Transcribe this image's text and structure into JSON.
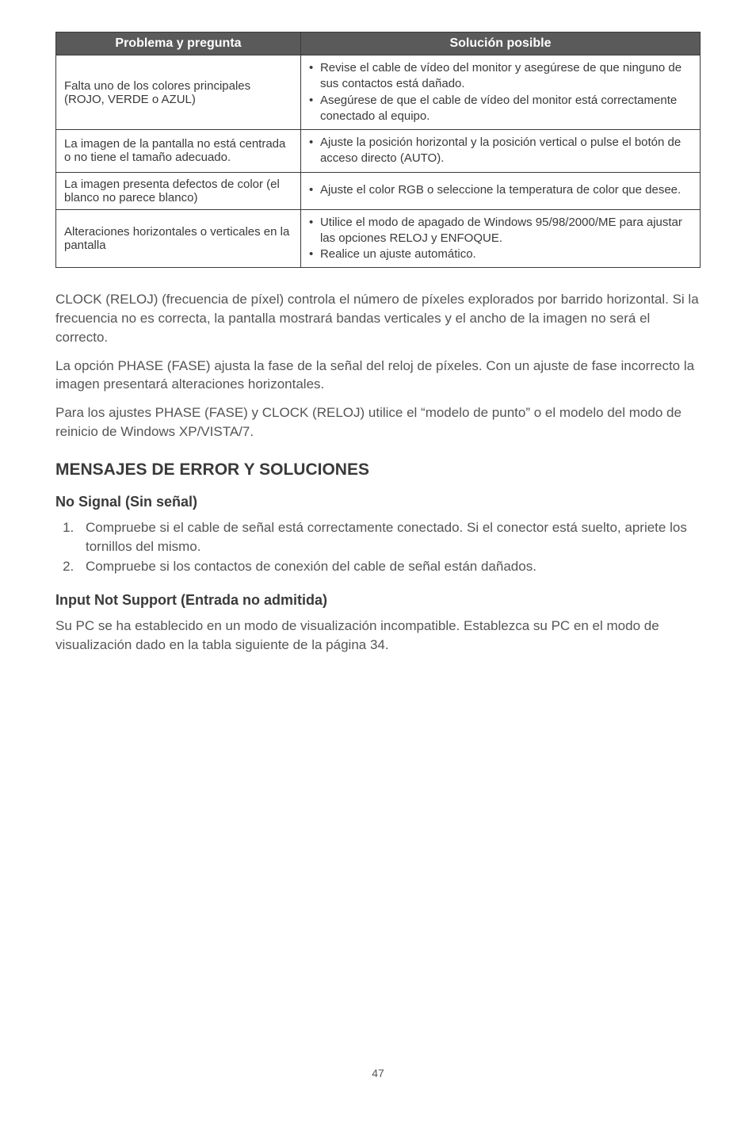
{
  "table": {
    "headers": [
      "Problema y pregunta",
      "Solución posible"
    ],
    "rows": [
      {
        "problem": "Falta uno de los colores principales (ROJO, VERDE o AZUL)",
        "solutions": [
          "Revise el cable de vídeo del monitor y asegúrese de que ninguno de sus contactos está dañado.",
          "Asegúrese de que el cable de vídeo del monitor está correctamente conectado al equipo."
        ]
      },
      {
        "problem": "La imagen de la pantalla no está centrada o no tiene el tamaño adecuado.",
        "solutions": [
          "Ajuste la posición horizontal y la posición vertical o pulse el botón de acceso directo (AUTO)."
        ]
      },
      {
        "problem": "La imagen presenta defectos de color (el blanco no parece blanco)",
        "solutions": [
          "Ajuste el color RGB o seleccione la temperatura de color que desee."
        ]
      },
      {
        "problem": "Alteraciones horizontales o verticales en la pantalla",
        "solutions": [
          "Utilice el modo de apagado de Windows 95/98/2000/ME para ajustar las opciones RELOJ y ENFOQUE.",
          "Realice un ajuste automático."
        ]
      }
    ]
  },
  "paragraphs": {
    "p1": "CLOCK (RELOJ) (frecuencia de píxel) controla el número de píxeles explorados por barrido horizontal. Si la frecuencia no es correcta, la pantalla mostrará bandas verticales y el ancho de la imagen no será el correcto.",
    "p2": "La opción PHASE (FASE) ajusta la fase de la señal del reloj de píxeles. Con un ajuste de fase incorrecto la imagen presentará alteraciones horizontales.",
    "p3": "Para los ajustes PHASE (FASE) y CLOCK (RELOJ) utilice el “modelo de punto” o el modelo del modo de reinicio de Windows XP/VISTA/7."
  },
  "section_heading": "MENSAJES DE ERROR Y SOLUCIONES",
  "no_signal": {
    "heading": "No Signal (Sin señal)",
    "items": [
      "Compruebe si el cable de señal está correctamente conectado. Si el conector está suelto, apriete los tornillos del mismo.",
      "Compruebe si los contactos de conexión del cable de señal están dañados."
    ]
  },
  "input_not_support": {
    "heading": "Input Not Support (Entrada no admitida)",
    "body": "Su PC se ha establecido en un modo de visualización incompatible. Establezca su PC en el modo de visualización dado en la tabla siguiente de la página 34."
  },
  "page_number": "47"
}
